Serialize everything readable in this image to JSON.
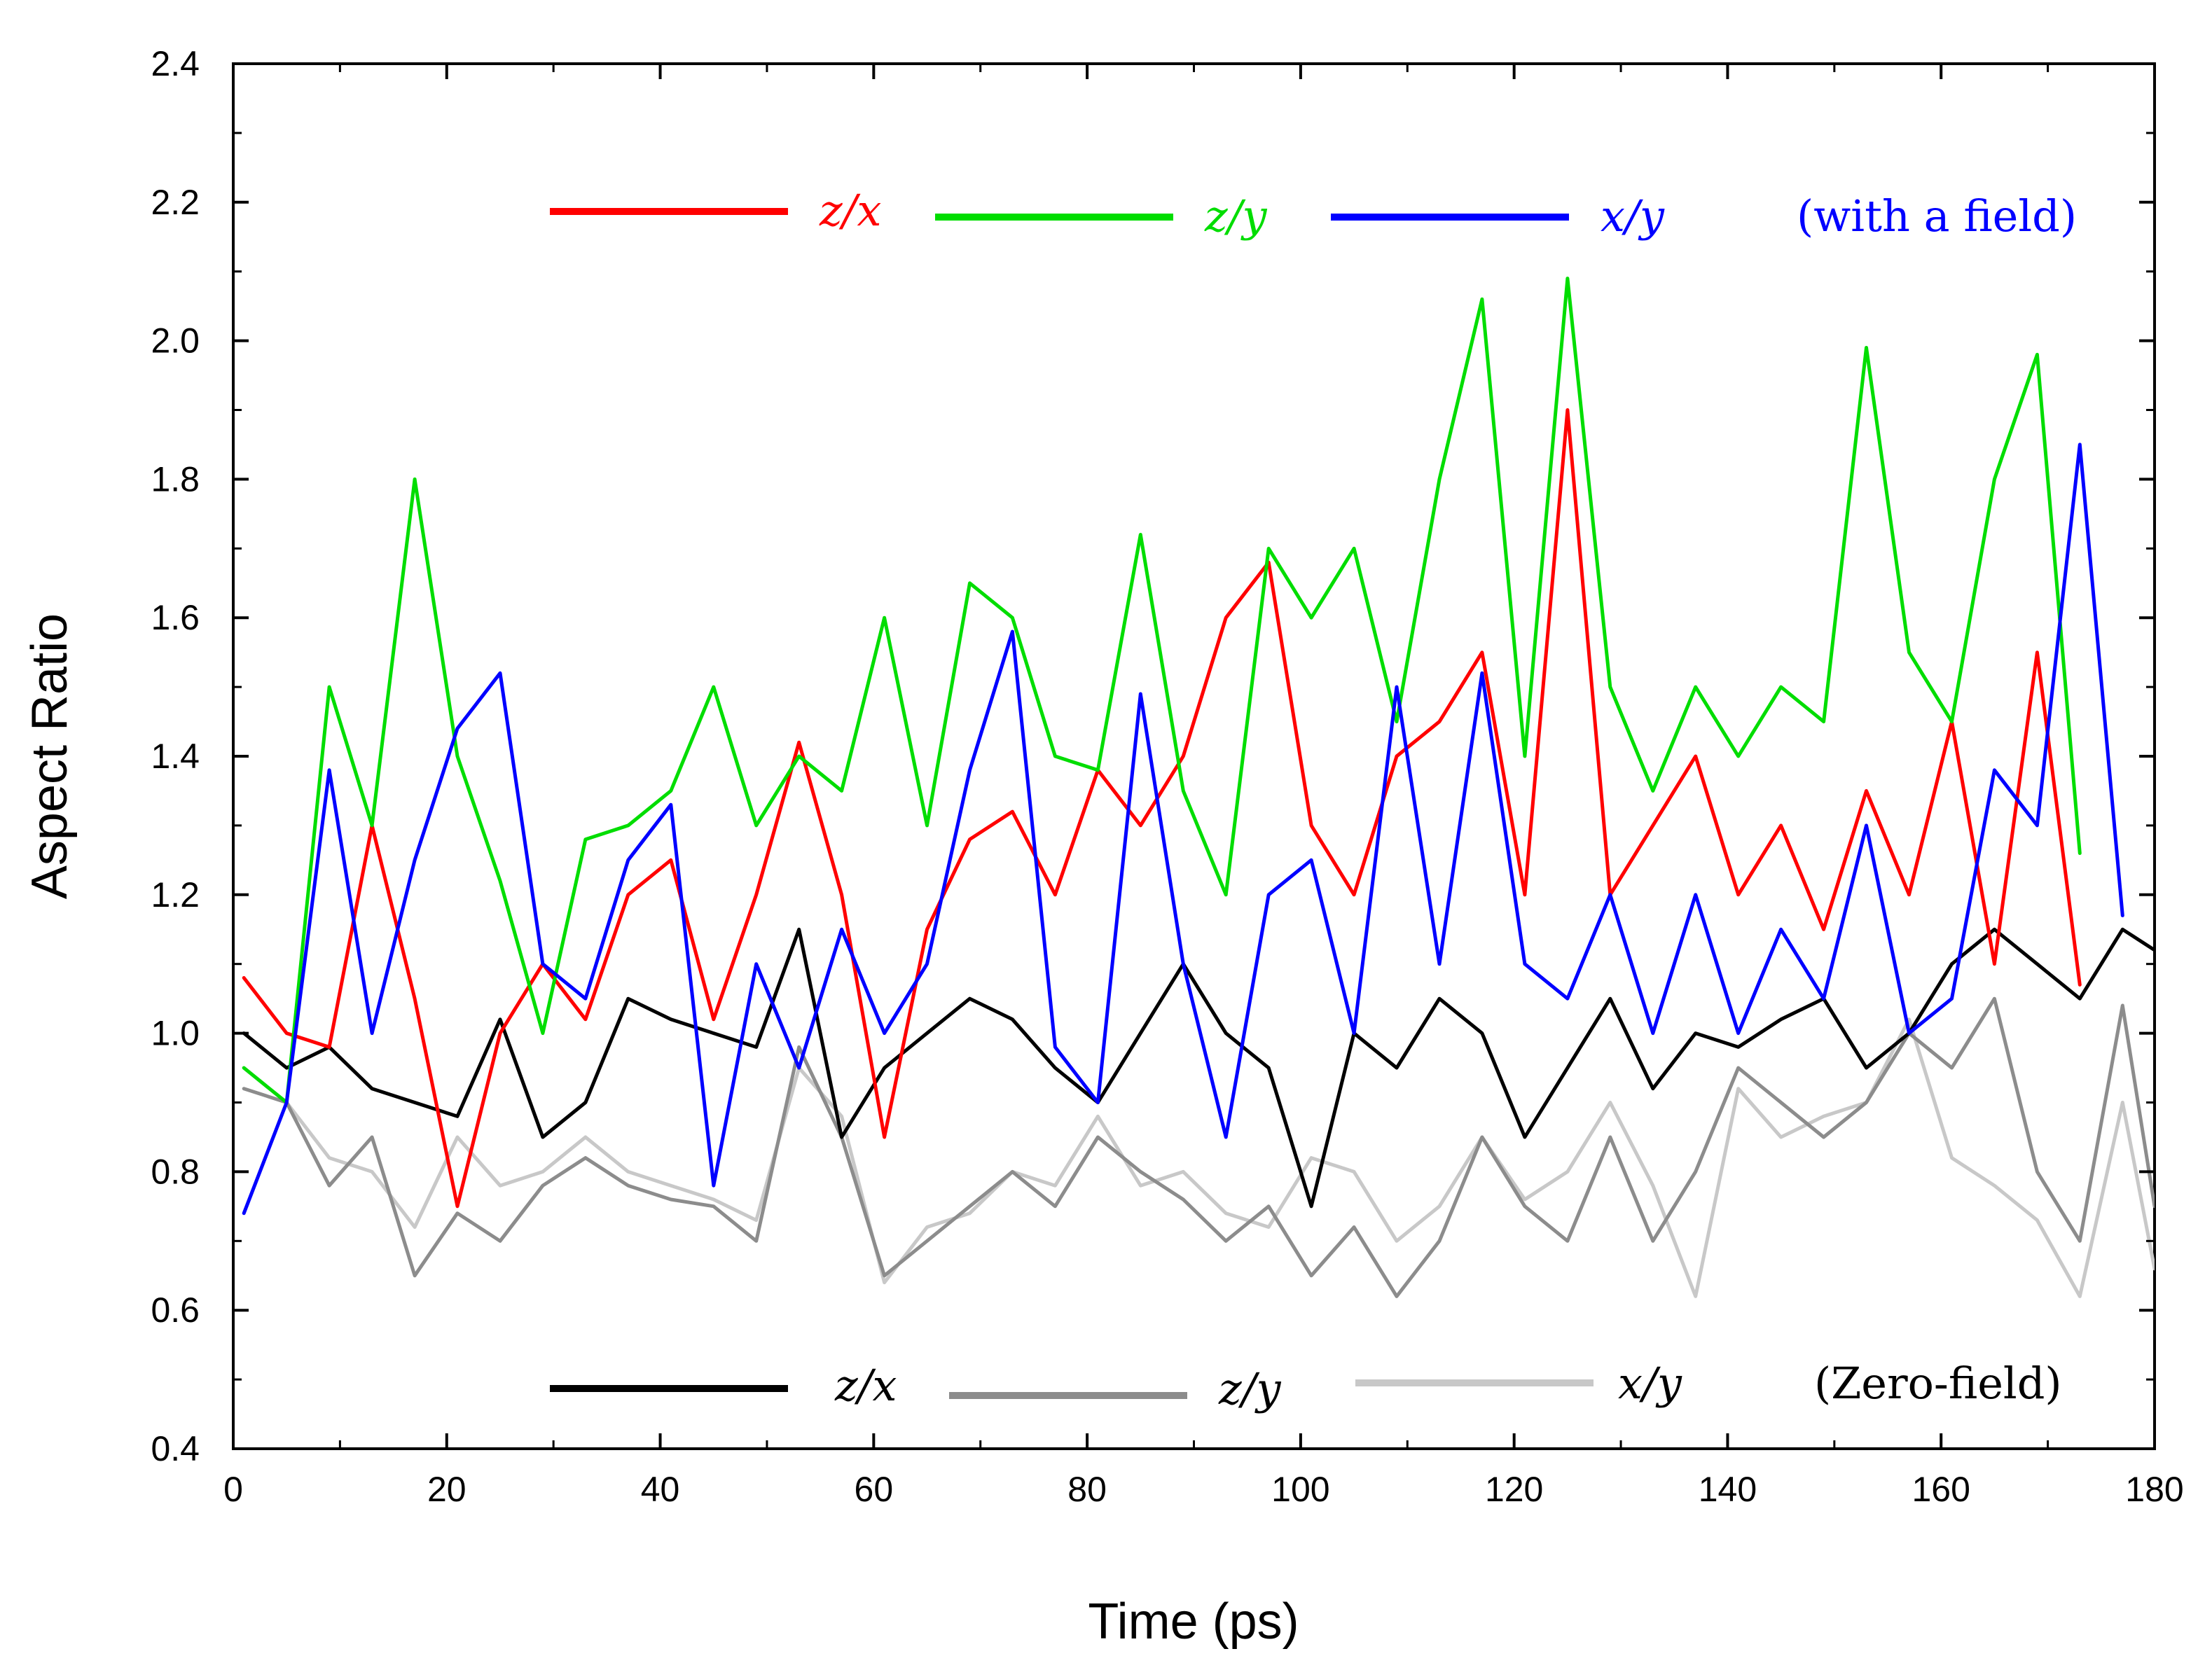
{
  "chart_data": {
    "type": "line",
    "title": "",
    "xlabel": "Time (ps)",
    "ylabel": "Aspect Ratio",
    "xlim": [
      0,
      180
    ],
    "ylim": [
      0.4,
      2.4
    ],
    "xticks": [
      "0",
      "20",
      "40",
      "60",
      "80",
      "100",
      "120",
      "140",
      "160",
      "180"
    ],
    "yticks": [
      "0.4",
      "0.6",
      "0.8",
      "1.0",
      "1.2",
      "1.4",
      "1.6",
      "1.8",
      "2.0",
      "2.2",
      "2.4"
    ],
    "grid": false,
    "legend_groups": [
      {
        "note": "(with a field)",
        "note_color": "#0000ff",
        "position": "top"
      },
      {
        "note": "(Zero-field)",
        "note_color": "#000000",
        "position": "bottom"
      }
    ],
    "x": [
      1,
      5,
      9,
      13,
      17,
      21,
      25,
      29,
      33,
      37,
      41,
      45,
      49,
      53,
      57,
      61,
      65,
      69,
      73,
      77,
      81,
      85,
      89,
      93,
      97,
      101,
      105,
      109,
      113,
      117,
      121,
      125,
      129,
      133,
      137,
      141,
      145,
      149,
      153,
      157,
      161,
      165,
      169,
      173,
      177,
      180
    ],
    "series": [
      {
        "name": "z/x",
        "group": "with a field",
        "color": "#ff0000",
        "values": [
          1.08,
          1.0,
          0.98,
          1.3,
          1.05,
          0.75,
          1.0,
          1.1,
          1.02,
          1.2,
          1.25,
          1.02,
          1.2,
          1.42,
          1.2,
          0.85,
          1.15,
          1.28,
          1.32,
          1.2,
          1.38,
          1.3,
          1.4,
          1.6,
          1.68,
          1.3,
          1.2,
          1.4,
          1.45,
          1.55,
          1.2,
          1.9,
          1.2,
          1.3,
          1.4,
          1.2,
          1.3,
          1.15,
          1.35,
          1.2,
          1.45,
          1.1,
          1.55,
          1.07,
          null,
          null
        ]
      },
      {
        "name": "z/y",
        "group": "with a field",
        "color": "#00dd00",
        "values": [
          0.95,
          0.9,
          1.5,
          1.3,
          1.8,
          1.4,
          1.22,
          1.0,
          1.28,
          1.3,
          1.35,
          1.5,
          1.3,
          1.4,
          1.35,
          1.6,
          1.3,
          1.65,
          1.6,
          1.4,
          1.38,
          1.72,
          1.35,
          1.2,
          1.7,
          1.6,
          1.7,
          1.45,
          1.8,
          2.06,
          1.4,
          2.09,
          1.5,
          1.35,
          1.5,
          1.4,
          1.5,
          1.45,
          1.99,
          1.55,
          1.45,
          1.8,
          1.98,
          1.26,
          null,
          null
        ]
      },
      {
        "name": "x/y",
        "group": "with a field",
        "color": "#0000ff",
        "values": [
          0.74,
          0.9,
          1.38,
          1.0,
          1.25,
          1.44,
          1.52,
          1.1,
          1.05,
          1.25,
          1.33,
          0.78,
          1.1,
          0.95,
          1.15,
          1.0,
          1.1,
          1.38,
          1.58,
          0.98,
          0.9,
          1.49,
          1.1,
          0.85,
          1.2,
          1.25,
          1.0,
          1.5,
          1.1,
          1.52,
          1.1,
          1.05,
          1.2,
          1.0,
          1.2,
          1.0,
          1.15,
          1.05,
          1.3,
          1.0,
          1.05,
          1.38,
          1.3,
          1.85,
          1.17,
          null
        ]
      },
      {
        "name": "z/x",
        "group": "Zero-field",
        "color": "#000000",
        "values": [
          1.0,
          0.95,
          0.98,
          0.92,
          0.9,
          0.88,
          1.02,
          0.85,
          0.9,
          1.05,
          1.02,
          1.0,
          0.98,
          1.15,
          0.85,
          0.95,
          1.0,
          1.05,
          1.02,
          0.95,
          0.9,
          1.0,
          1.1,
          1.0,
          0.95,
          0.75,
          1.0,
          0.95,
          1.05,
          1.0,
          0.85,
          0.95,
          1.05,
          0.92,
          1.0,
          0.98,
          1.02,
          1.05,
          0.95,
          1.0,
          1.1,
          1.15,
          1.1,
          1.05,
          1.15,
          1.12
        ]
      },
      {
        "name": "z/y",
        "group": "Zero-field",
        "color": "#8c8c8c",
        "values": [
          0.92,
          0.9,
          0.78,
          0.85,
          0.65,
          0.74,
          0.7,
          0.78,
          0.82,
          0.78,
          0.76,
          0.75,
          0.7,
          0.98,
          0.85,
          0.65,
          0.7,
          0.75,
          0.8,
          0.75,
          0.85,
          0.8,
          0.76,
          0.7,
          0.75,
          0.65,
          0.72,
          0.62,
          0.7,
          0.85,
          0.75,
          0.7,
          0.85,
          0.7,
          0.8,
          0.95,
          0.9,
          0.85,
          0.9,
          1.0,
          0.95,
          1.05,
          0.8,
          0.7,
          1.04,
          0.75
        ]
      },
      {
        "name": "x/y",
        "group": "Zero-field",
        "color": "#c8c8c8",
        "values": [
          0.95,
          0.9,
          0.82,
          0.8,
          0.72,
          0.85,
          0.78,
          0.8,
          0.85,
          0.8,
          0.78,
          0.76,
          0.73,
          0.95,
          0.88,
          0.64,
          0.72,
          0.74,
          0.8,
          0.78,
          0.88,
          0.78,
          0.8,
          0.74,
          0.72,
          0.82,
          0.8,
          0.7,
          0.75,
          0.85,
          0.76,
          0.8,
          0.9,
          0.78,
          0.62,
          0.92,
          0.85,
          0.88,
          0.9,
          1.02,
          0.82,
          0.78,
          0.73,
          0.62,
          0.9,
          0.66
        ]
      }
    ]
  }
}
